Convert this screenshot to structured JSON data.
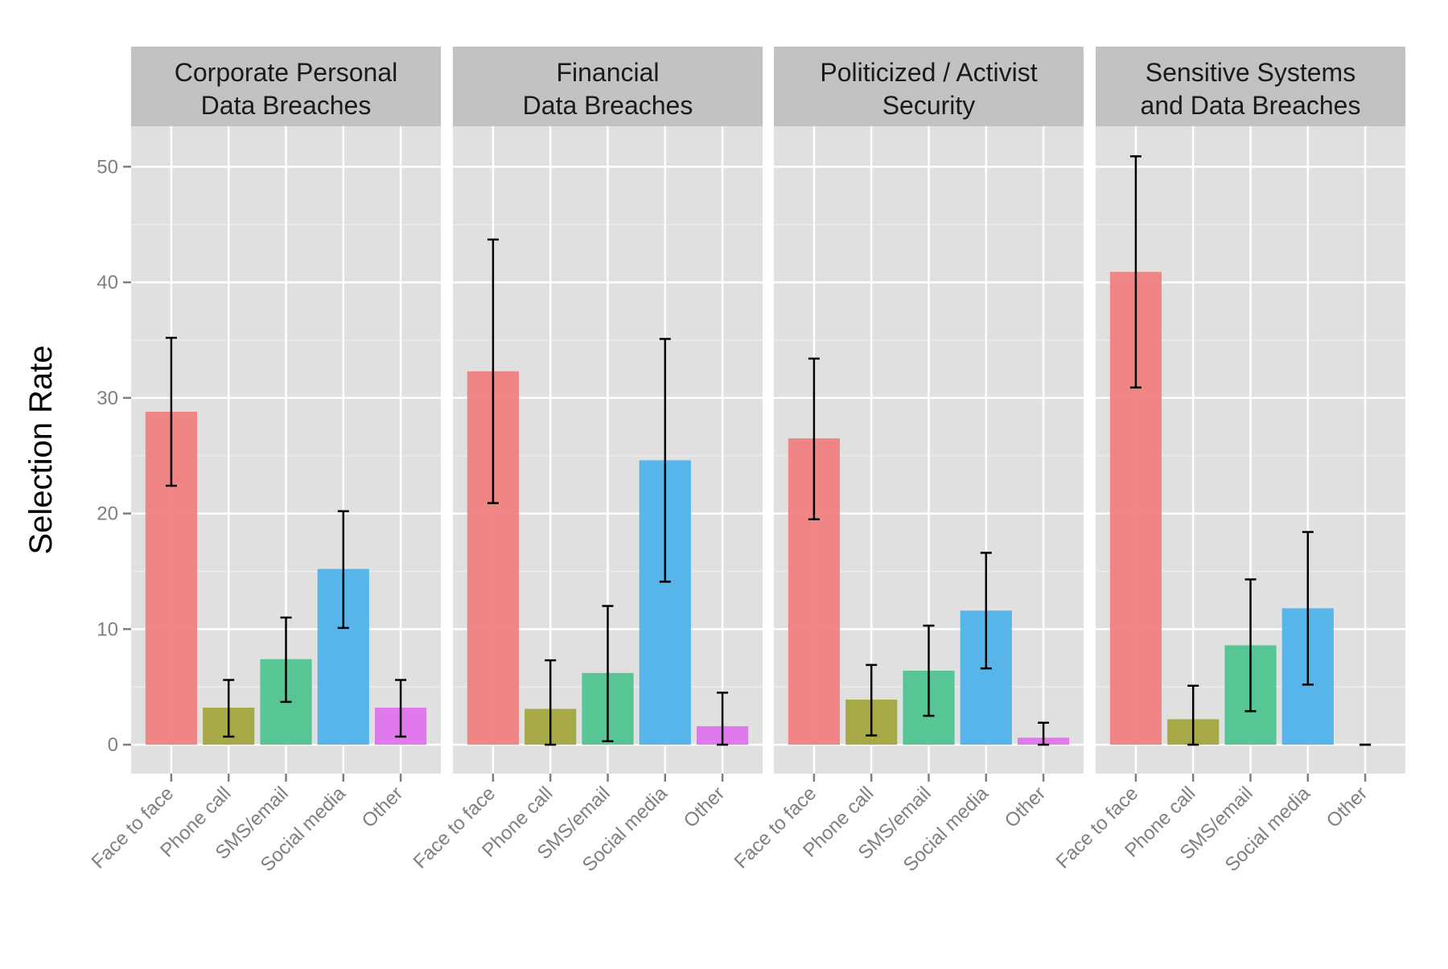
{
  "chart_data": {
    "type": "bar",
    "ylabel": "Selection Rate",
    "xlabel": "",
    "ylim": [
      -2.5,
      53.5
    ],
    "yticks": [
      0,
      10,
      20,
      30,
      40,
      50
    ],
    "grid": true,
    "legend": "none",
    "categories": [
      "Face to face",
      "Phone call",
      "SMS/email",
      "Social media",
      "Other"
    ],
    "colors": [
      "#f08080",
      "#a3a53d",
      "#4fc48f",
      "#4fb2ea",
      "#df73ec"
    ],
    "panels": [
      {
        "name": "Corporate Personal Data Breaches",
        "title_lines": [
          "Corporate Personal",
          "Data Breaches"
        ],
        "values": [
          28.8,
          3.2,
          7.4,
          15.2,
          3.2
        ],
        "error_low": [
          22.4,
          0.7,
          3.7,
          10.1,
          0.7
        ],
        "error_high": [
          35.2,
          5.6,
          11.0,
          20.2,
          5.6
        ]
      },
      {
        "name": "Financial Data Breaches",
        "title_lines": [
          "Financial",
          "Data Breaches"
        ],
        "values": [
          32.3,
          3.1,
          6.2,
          24.6,
          1.6
        ],
        "error_low": [
          20.9,
          0.0,
          0.3,
          14.1,
          0.0
        ],
        "error_high": [
          43.7,
          7.3,
          12.0,
          35.1,
          4.5
        ]
      },
      {
        "name": "Politicized / Activist Security",
        "title_lines": [
          "Politicized / Activist",
          "Security"
        ],
        "values": [
          26.5,
          3.9,
          6.4,
          11.6,
          0.6
        ],
        "error_low": [
          19.5,
          0.8,
          2.5,
          6.6,
          0.0
        ],
        "error_high": [
          33.4,
          6.9,
          10.3,
          16.6,
          1.9
        ]
      },
      {
        "name": "Sensitive Systems and Data Breaches",
        "title_lines": [
          "Sensitive Systems",
          "and Data Breaches"
        ],
        "values": [
          40.9,
          2.2,
          8.6,
          11.8,
          0.0
        ],
        "error_low": [
          30.9,
          0.0,
          2.9,
          5.2,
          0.0
        ],
        "error_high": [
          50.9,
          5.1,
          14.3,
          18.4,
          0.0
        ]
      }
    ]
  }
}
